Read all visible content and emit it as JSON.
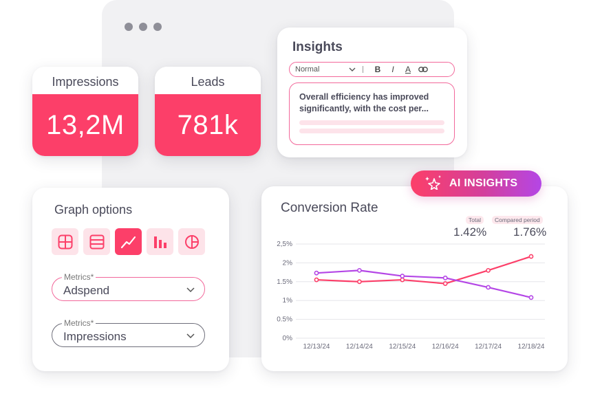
{
  "stats": {
    "impressions": {
      "label": "Impressions",
      "value": "13,2M"
    },
    "leads": {
      "label": "Leads",
      "value": "781k"
    }
  },
  "insights": {
    "title": "Insights",
    "toolbar": {
      "format": "Normal",
      "bold": "B",
      "italic": "I",
      "color": "A"
    },
    "text": "Overall efficiency has improved significantly, with the cost per..."
  },
  "ai_badge": {
    "label": "AI INSIGHTS",
    "icon": "sparkle-stars-icon"
  },
  "graph_options": {
    "title": "Graph options",
    "types": [
      {
        "name": "grid",
        "icon": "grid-icon",
        "active": false
      },
      {
        "name": "table",
        "icon": "table-rows-icon",
        "active": false
      },
      {
        "name": "line",
        "icon": "line-chart-icon",
        "active": true
      },
      {
        "name": "bar",
        "icon": "bar-chart-icon",
        "active": false
      },
      {
        "name": "pie",
        "icon": "pie-chart-icon",
        "active": false
      }
    ],
    "fields": [
      {
        "legend": "Metrics*",
        "value": "Adspend"
      },
      {
        "legend": "Metrics*",
        "value": "Impressions"
      }
    ]
  },
  "conversion": {
    "title": "Conversion Rate",
    "total_label": "Total",
    "total_value": "1.42%",
    "compared_label": "Compared period",
    "compared_value": "1.76%"
  },
  "colors": {
    "accent": "#fc3f69",
    "purple": "#b446e6",
    "pink_light": "#fde3e9"
  },
  "chart_data": {
    "type": "line",
    "x": [
      "12/13/24",
      "12/14/24",
      "12/15/24",
      "12/16/24",
      "12/17/24",
      "12/18/24"
    ],
    "y_ticks": [
      "0%",
      "0.5%",
      "1%",
      "1.5%",
      "2%",
      "2,5%"
    ],
    "ylim": [
      0,
      2.5
    ],
    "series": [
      {
        "color": "#fc3f69",
        "values": [
          1.55,
          1.5,
          1.55,
          1.45,
          1.8,
          2.17
        ]
      },
      {
        "color": "#b446e6",
        "values": [
          1.73,
          1.8,
          1.65,
          1.6,
          1.35,
          1.08
        ]
      }
    ]
  }
}
